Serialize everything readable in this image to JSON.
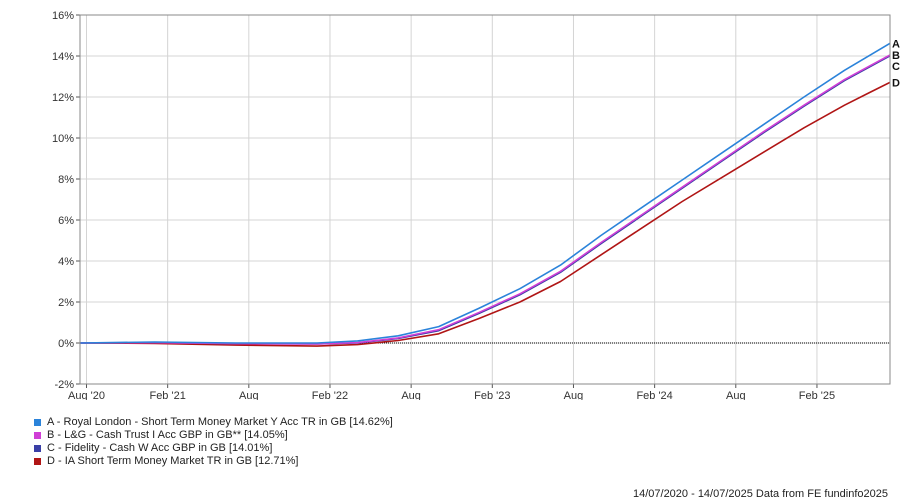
{
  "chart_data": {
    "type": "line",
    "title": "",
    "xlabel": "",
    "ylabel": "",
    "ylim": [
      -2,
      16
    ],
    "y_ticks": [
      -2,
      0,
      2,
      4,
      6,
      8,
      10,
      12,
      14,
      16
    ],
    "y_tick_suffix": "%",
    "x_range": [
      2020.54,
      2025.53
    ],
    "x_ticks": [
      {
        "label": "Aug '20",
        "x": 2020.58
      },
      {
        "label": "Feb '21",
        "x": 2021.08
      },
      {
        "label": "Aug",
        "x": 2021.58
      },
      {
        "label": "Feb '22",
        "x": 2022.08
      },
      {
        "label": "Aug",
        "x": 2022.58
      },
      {
        "label": "Feb '23",
        "x": 2023.08
      },
      {
        "label": "Aug",
        "x": 2023.58
      },
      {
        "label": "Feb '24",
        "x": 2024.08
      },
      {
        "label": "Aug",
        "x": 2024.58
      },
      {
        "label": "Feb '25",
        "x": 2025.08
      }
    ],
    "grid": true,
    "legend_position": "bottom-left",
    "series": [
      {
        "name": "A - Royal London - Short Term Money Market Y Acc TR in GB [14.62%]",
        "label": "A",
        "color": "#2b83da",
        "x": [
          2020.54,
          2021.0,
          2021.5,
          2022.0,
          2022.25,
          2022.5,
          2022.75,
          2023.0,
          2023.25,
          2023.5,
          2023.75,
          2024.0,
          2024.25,
          2024.5,
          2024.75,
          2025.0,
          2025.25,
          2025.53
        ],
        "y": [
          0.0,
          0.05,
          0.0,
          0.0,
          0.1,
          0.35,
          0.8,
          1.7,
          2.65,
          3.8,
          5.25,
          6.6,
          7.95,
          9.3,
          10.65,
          12.0,
          13.3,
          14.62
        ]
      },
      {
        "name": "B - L&G - Cash Trust I Acc GBP in GB** [14.05%]",
        "label": "B",
        "color": "#d03fd6",
        "x": [
          2020.54,
          2021.0,
          2021.5,
          2022.0,
          2022.25,
          2022.5,
          2022.75,
          2023.0,
          2023.25,
          2023.5,
          2023.75,
          2024.0,
          2024.25,
          2024.5,
          2024.75,
          2025.0,
          2025.25,
          2025.53
        ],
        "y": [
          0.0,
          0.02,
          -0.03,
          -0.05,
          0.02,
          0.25,
          0.65,
          1.5,
          2.4,
          3.5,
          4.9,
          6.25,
          7.6,
          8.95,
          10.3,
          11.6,
          12.85,
          14.05
        ]
      },
      {
        "name": "C - Fidelity - Cash W Acc GBP in GB [14.01%]",
        "label": "C",
        "color": "#3a3fa6",
        "x": [
          2020.54,
          2021.0,
          2021.5,
          2022.0,
          2022.25,
          2022.5,
          2022.75,
          2023.0,
          2023.25,
          2023.5,
          2023.75,
          2024.0,
          2024.25,
          2024.5,
          2024.75,
          2025.0,
          2025.25,
          2025.53
        ],
        "y": [
          0.0,
          0.02,
          -0.03,
          -0.05,
          0.0,
          0.22,
          0.6,
          1.45,
          2.35,
          3.45,
          4.85,
          6.2,
          7.55,
          8.9,
          10.25,
          11.55,
          12.8,
          14.01
        ]
      },
      {
        "name": "D - IA Short Term Money Market TR in GB [12.71%]",
        "label": "D",
        "color": "#b01515",
        "x": [
          2020.54,
          2021.0,
          2021.5,
          2022.0,
          2022.25,
          2022.5,
          2022.75,
          2023.0,
          2023.25,
          2023.5,
          2023.75,
          2024.0,
          2024.25,
          2024.5,
          2024.75,
          2025.0,
          2025.25,
          2025.4,
          2025.53
        ],
        "y": [
          0.0,
          -0.02,
          -0.1,
          -0.15,
          -0.08,
          0.12,
          0.45,
          1.2,
          2.0,
          3.0,
          4.3,
          5.6,
          6.9,
          8.1,
          9.3,
          10.5,
          11.6,
          12.2,
          12.71
        ]
      }
    ]
  },
  "footer": {
    "text": "14/07/2020 - 14/07/2025 Data from FE fundinfo2025"
  }
}
